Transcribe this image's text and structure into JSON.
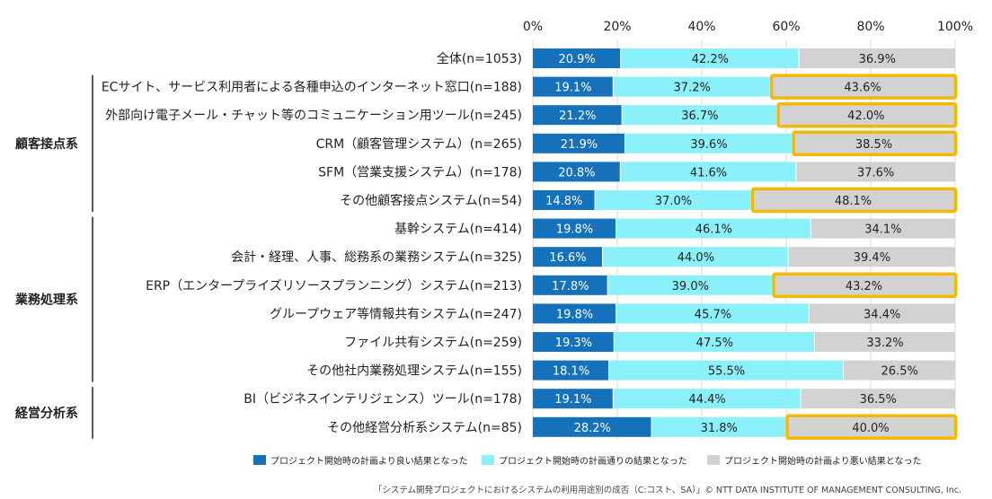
{
  "chart_data": {
    "type": "bar",
    "orientation": "horizontal",
    "stacked": true,
    "xlim": [
      0,
      100
    ],
    "x_ticks": [
      "0%",
      "20%",
      "40%",
      "60%",
      "80%",
      "100%"
    ],
    "grid": true,
    "legend_position": "bottom",
    "categories": [
      "全体(n=1053)",
      "ECサイト、サービス利用者による各種申込のインターネット窓口(n=188)",
      "外部向け電子メール・チャット等のコミュニケーション用ツール(n=245)",
      "CRM（顧客管理システム）(n=265)",
      "SFM（営業支援システム）(n=178)",
      "その他顧客接点システム(n=54)",
      "基幹システム(n=414)",
      "会計・経理、人事、総務系の業務システム(n=325)",
      "ERP（エンタープライズリソースプランニング）システム(n=213)",
      "グループウェア等情報共有システム(n=247)",
      "ファイル共有システム(n=259)",
      "その他社内業務処理システム(n=155)",
      "BI（ビジネスインテリジェンス）ツール(n=178)",
      "その他経営分析系システム(n=85)"
    ],
    "groups": [
      {
        "label": "顧客接点系",
        "from": 1,
        "to": 5
      },
      {
        "label": "業務処理系",
        "from": 6,
        "to": 11
      },
      {
        "label": "経営分析系",
        "from": 12,
        "to": 13
      }
    ],
    "series": [
      {
        "name": "プロジェクト開始時の計画より良い結果となった",
        "color": "#1572BA",
        "label_color": "#ffffff",
        "values": [
          20.9,
          19.1,
          21.2,
          21.9,
          20.8,
          14.8,
          19.8,
          16.6,
          17.8,
          19.8,
          19.3,
          18.1,
          19.1,
          28.2
        ],
        "labels": [
          "20.9%",
          "19.1%",
          "21.2%",
          "21.9%",
          "20.8%",
          "14.8%",
          "19.8%",
          "16.6%",
          "17.8%",
          "19.8%",
          "19.3%",
          "18.1%",
          "19.1%",
          "28.2%"
        ]
      },
      {
        "name": "プロジェクト開始時の計画通りの結果となった",
        "color": "#8AF1FA",
        "label_color": "#222222",
        "values": [
          42.2,
          37.2,
          36.7,
          39.6,
          41.6,
          37.0,
          46.1,
          44.0,
          39.0,
          45.7,
          47.5,
          55.5,
          44.4,
          31.8
        ],
        "labels": [
          "42.2%",
          "37.2%",
          "36.7%",
          "39.6%",
          "41.6%",
          "37.0%",
          "46.1%",
          "44.0%",
          "39.0%",
          "45.7%",
          "47.5%",
          "55.5%",
          "44.4%",
          "31.8%"
        ]
      },
      {
        "name": "プロジェクト開始時の計画より悪い結果となった",
        "color": "#D2D2D2",
        "label_color": "#222222",
        "values": [
          36.9,
          43.6,
          42.0,
          38.5,
          37.6,
          48.1,
          34.1,
          39.4,
          43.2,
          34.4,
          33.2,
          26.5,
          36.5,
          40.0
        ],
        "labels": [
          "36.9%",
          "43.6%",
          "42.0%",
          "38.5%",
          "37.6%",
          "48.1%",
          "34.1%",
          "39.4%",
          "43.2%",
          "34.4%",
          "33.2%",
          "26.5%",
          "36.5%",
          "40.0%"
        ]
      }
    ],
    "highlighted_rows": [
      1,
      2,
      3,
      5,
      8,
      13
    ],
    "highlight_color": "#F5B800"
  },
  "footer": {
    "source": "「システム開発プロジェクトにおけるシステムの利用用途別の成否（C:コスト、SA）」© NTT DATA INSTITUTE OF MANAGEMENT CONSULTING, Inc."
  }
}
